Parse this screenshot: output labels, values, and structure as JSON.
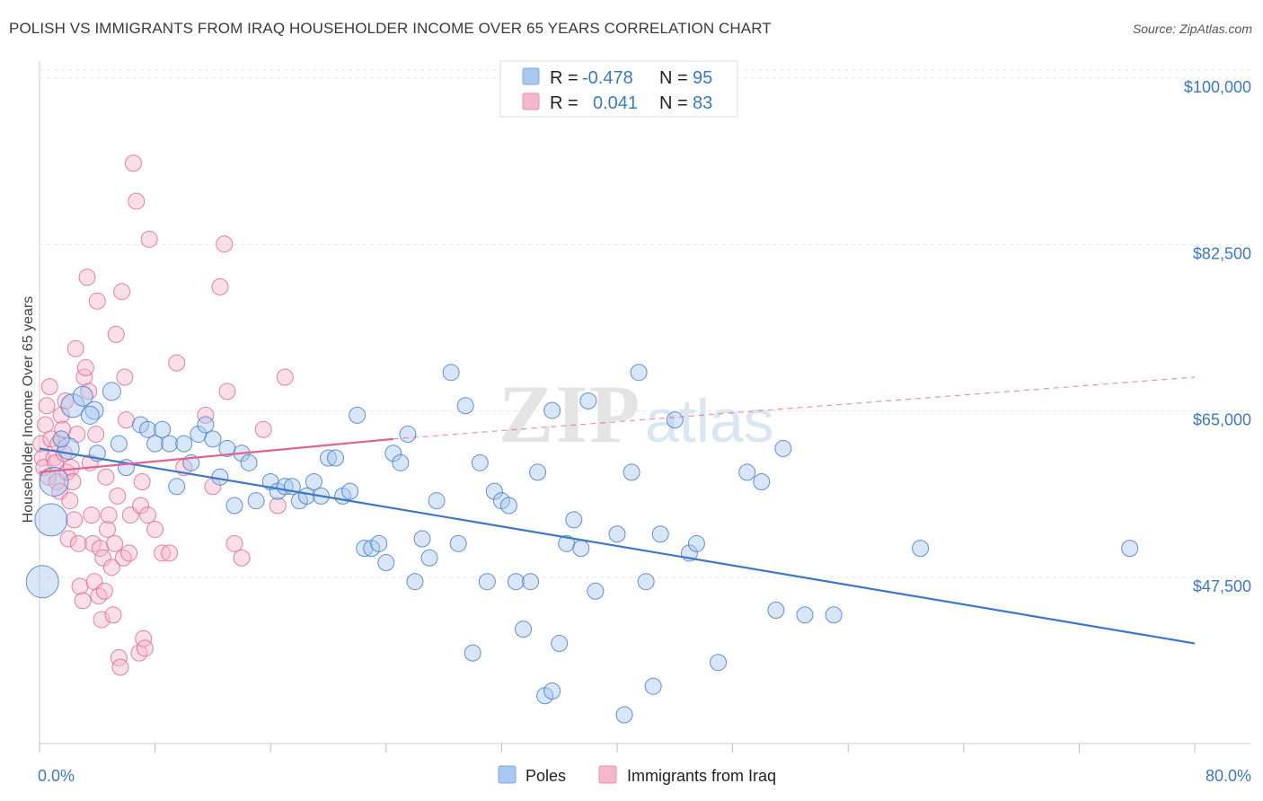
{
  "header": {
    "title": "POLISH VS IMMIGRANTS FROM IRAQ HOUSEHOLDER INCOME OVER 65 YEARS CORRELATION CHART",
    "source": "Source: ZipAtlas.com"
  },
  "watermark": {
    "zip": "ZIP",
    "atlas": "atlas"
  },
  "legend": {
    "rows": [
      {
        "r_label": "R =",
        "r_value": "-0.478",
        "n_label": "N =",
        "n_value": "95",
        "color": "#a8c8f0"
      },
      {
        "r_label": "R =",
        "r_value": "0.041",
        "n_label": "N =",
        "n_value": "83",
        "color": "#f5b8cb"
      }
    ]
  },
  "bottom_legend": [
    {
      "label": "Poles",
      "color": "#a8c8f0"
    },
    {
      "label": "Immigrants from Iraq",
      "color": "#f5b8cb"
    }
  ],
  "chart_data": {
    "type": "scatter",
    "title": "POLISH VS IMMIGRANTS FROM IRAQ HOUSEHOLDER INCOME OVER 65 YEARS CORRELATION CHART",
    "xlabel": "",
    "ylabel": "Householder Income Over 65 years",
    "x_tick_labels": [
      "0.0%",
      "80.0%"
    ],
    "y_tick_labels": [
      "$100,000",
      "$82,500",
      "$65,000",
      "$47,500"
    ],
    "y_ticks": [
      100000,
      82500,
      65000,
      47500
    ],
    "xlim": [
      0,
      80
    ],
    "ylim": [
      30000,
      102000
    ],
    "grid": "horizontal dashed",
    "legend_position": "top-center",
    "colors": {
      "poles": "#3b78c8",
      "poles_fill": "#a8c8f0",
      "iraq": "#e0628f",
      "iraq_fill": "#f5b8cb"
    },
    "series": [
      {
        "name": "Poles",
        "trend": {
          "x": [
            0,
            80
          ],
          "y": [
            62000,
            41500
          ],
          "style": "solid"
        },
        "points": [
          [
            0.2,
            48000,
            18
          ],
          [
            0.8,
            54500,
            18
          ],
          [
            1.0,
            58500,
            16
          ],
          [
            2.3,
            66500,
            13
          ],
          [
            2.0,
            62000,
            12
          ],
          [
            3.0,
            67500,
            11
          ],
          [
            3.8,
            66000,
            10
          ],
          [
            5.0,
            68000,
            10
          ],
          [
            3.5,
            65500,
            10
          ],
          [
            5.5,
            62500,
            9
          ],
          [
            7.0,
            64500,
            9
          ],
          [
            7.5,
            64000,
            9
          ],
          [
            8.0,
            62500,
            9
          ],
          [
            9.0,
            62500,
            9
          ],
          [
            8.5,
            64000,
            9
          ],
          [
            10.0,
            62500,
            9
          ],
          [
            10.5,
            60500,
            9
          ],
          [
            11.0,
            63500,
            9
          ],
          [
            11.5,
            64500,
            9
          ],
          [
            12.0,
            63000,
            9
          ],
          [
            12.5,
            59000,
            9
          ],
          [
            13.0,
            62000,
            9
          ],
          [
            14.0,
            61500,
            9
          ],
          [
            14.5,
            60500,
            9
          ],
          [
            15.0,
            56500,
            9
          ],
          [
            16.0,
            58500,
            9
          ],
          [
            16.5,
            57500,
            9
          ],
          [
            17.0,
            58000,
            9
          ],
          [
            17.5,
            58000,
            9
          ],
          [
            18.0,
            56500,
            9
          ],
          [
            18.5,
            57000,
            9
          ],
          [
            19.0,
            58500,
            9
          ],
          [
            19.5,
            57000,
            9
          ],
          [
            20.0,
            61000,
            9
          ],
          [
            20.5,
            61000,
            9
          ],
          [
            21.0,
            57000,
            9
          ],
          [
            21.5,
            57500,
            9
          ],
          [
            22.0,
            65500,
            9
          ],
          [
            22.5,
            51500,
            9
          ],
          [
            23.0,
            51500,
            9
          ],
          [
            23.5,
            52000,
            9
          ],
          [
            24.0,
            50000,
            9
          ],
          [
            24.5,
            61500,
            9
          ],
          [
            25.0,
            60500,
            9
          ],
          [
            25.5,
            63500,
            9
          ],
          [
            26.0,
            48000,
            9
          ],
          [
            26.5,
            52500,
            9
          ],
          [
            27.0,
            50500,
            9
          ],
          [
            27.5,
            56500,
            9
          ],
          [
            28.5,
            70000,
            9
          ],
          [
            29.0,
            52000,
            9
          ],
          [
            29.5,
            66500,
            9
          ],
          [
            30.0,
            40500,
            9
          ],
          [
            30.5,
            60500,
            9
          ],
          [
            31.0,
            48000,
            9
          ],
          [
            31.5,
            57500,
            9
          ],
          [
            32.0,
            56500,
            9
          ],
          [
            32.5,
            56000,
            9
          ],
          [
            33.0,
            48000,
            9
          ],
          [
            33.5,
            43000,
            9
          ],
          [
            34.0,
            48000,
            9
          ],
          [
            34.5,
            59500,
            9
          ],
          [
            35.0,
            36000,
            9
          ],
          [
            35.5,
            66000,
            9
          ],
          [
            35.5,
            36500,
            9
          ],
          [
            36.5,
            52000,
            9
          ],
          [
            37.0,
            54500,
            9
          ],
          [
            37.5,
            51500,
            9
          ],
          [
            38.0,
            67000,
            9
          ],
          [
            38.5,
            47000,
            9
          ],
          [
            40.0,
            53000,
            9
          ],
          [
            40.5,
            34000,
            9
          ],
          [
            41.0,
            59500,
            9
          ],
          [
            41.5,
            70000,
            9
          ],
          [
            42.0,
            48000,
            9
          ],
          [
            42.5,
            37000,
            9
          ],
          [
            43.0,
            53000,
            9
          ],
          [
            44.0,
            65000,
            9
          ],
          [
            45.0,
            51000,
            9
          ],
          [
            45.5,
            52000,
            9
          ],
          [
            47.0,
            39500,
            9
          ],
          [
            49.0,
            59500,
            9
          ],
          [
            50.0,
            58500,
            9
          ],
          [
            51.0,
            45000,
            9
          ],
          [
            51.5,
            62000,
            9
          ],
          [
            53.0,
            44500,
            9
          ],
          [
            55.0,
            44500,
            9
          ],
          [
            61.0,
            51500,
            9
          ],
          [
            75.5,
            51500,
            9
          ],
          [
            36.0,
            41500,
            9
          ],
          [
            1.5,
            63000,
            9
          ],
          [
            4.0,
            61500,
            9
          ],
          [
            6.0,
            60000,
            9
          ],
          [
            9.5,
            58000,
            9
          ],
          [
            13.5,
            56000,
            9
          ]
        ]
      },
      {
        "name": "Immigrants from Iraq",
        "trend": {
          "x": [
            0,
            24.5
          ],
          "y": [
            59500,
            63000
          ],
          "style": "solid",
          "extended_dashed_to": [
            80,
            69500
          ]
        },
        "points": [
          [
            0.1,
            62500,
            9
          ],
          [
            0.2,
            61000,
            9
          ],
          [
            0.3,
            60000,
            9
          ],
          [
            0.4,
            64500,
            9
          ],
          [
            0.5,
            66500,
            9
          ],
          [
            0.6,
            59000,
            9
          ],
          [
            0.7,
            68500,
            9
          ],
          [
            0.8,
            63000,
            9
          ],
          [
            1.0,
            61000,
            9
          ],
          [
            1.1,
            60500,
            9
          ],
          [
            1.2,
            58500,
            9
          ],
          [
            1.3,
            62500,
            9
          ],
          [
            1.4,
            57500,
            9
          ],
          [
            1.5,
            65500,
            9
          ],
          [
            1.6,
            64000,
            9
          ],
          [
            1.7,
            61500,
            9
          ],
          [
            1.8,
            67000,
            9
          ],
          [
            1.9,
            59500,
            9
          ],
          [
            2.0,
            52500,
            9
          ],
          [
            2.1,
            56500,
            9
          ],
          [
            2.2,
            60000,
            9
          ],
          [
            2.3,
            58500,
            9
          ],
          [
            2.4,
            54500,
            9
          ],
          [
            2.5,
            72500,
            9
          ],
          [
            2.6,
            63500,
            9
          ],
          [
            2.7,
            52000,
            9
          ],
          [
            2.8,
            47500,
            9
          ],
          [
            3.0,
            46000,
            9
          ],
          [
            3.1,
            69500,
            9
          ],
          [
            3.2,
            70500,
            9
          ],
          [
            3.3,
            80000,
            9
          ],
          [
            3.4,
            68000,
            9
          ],
          [
            3.5,
            60500,
            9
          ],
          [
            3.6,
            55000,
            9
          ],
          [
            3.7,
            52000,
            9
          ],
          [
            3.8,
            48000,
            9
          ],
          [
            3.9,
            63500,
            9
          ],
          [
            4.0,
            77500,
            9
          ],
          [
            4.1,
            46500,
            9
          ],
          [
            4.2,
            51500,
            9
          ],
          [
            4.3,
            44000,
            9
          ],
          [
            4.4,
            50500,
            9
          ],
          [
            4.5,
            47000,
            9
          ],
          [
            4.6,
            59000,
            9
          ],
          [
            4.7,
            53500,
            9
          ],
          [
            4.8,
            55000,
            9
          ],
          [
            5.0,
            49500,
            9
          ],
          [
            5.1,
            44500,
            9
          ],
          [
            5.2,
            52000,
            9
          ],
          [
            5.3,
            74000,
            9
          ],
          [
            5.4,
            57000,
            9
          ],
          [
            5.5,
            40000,
            9
          ],
          [
            5.6,
            39000,
            9
          ],
          [
            5.7,
            78500,
            9
          ],
          [
            5.8,
            50500,
            9
          ],
          [
            5.9,
            69500,
            9
          ],
          [
            6.0,
            65000,
            9
          ],
          [
            6.2,
            51000,
            9
          ],
          [
            6.3,
            55000,
            9
          ],
          [
            6.5,
            92000,
            9
          ],
          [
            6.7,
            88000,
            9
          ],
          [
            6.9,
            40500,
            9
          ],
          [
            7.0,
            56000,
            9
          ],
          [
            7.1,
            58500,
            9
          ],
          [
            7.2,
            42000,
            9
          ],
          [
            7.3,
            41000,
            9
          ],
          [
            7.5,
            55000,
            9
          ],
          [
            7.6,
            84000,
            9
          ],
          [
            8.0,
            53500,
            9
          ],
          [
            8.5,
            51000,
            9
          ],
          [
            9.0,
            51000,
            9
          ],
          [
            9.5,
            71000,
            9
          ],
          [
            10.0,
            60000,
            9
          ],
          [
            11.5,
            65500,
            9
          ],
          [
            12.0,
            58000,
            9
          ],
          [
            12.5,
            79000,
            9
          ],
          [
            12.8,
            83500,
            9
          ],
          [
            13.0,
            68000,
            9
          ],
          [
            13.5,
            52000,
            9
          ],
          [
            14.0,
            50500,
            9
          ],
          [
            15.5,
            64000,
            9
          ],
          [
            16.5,
            56000,
            9
          ],
          [
            17.0,
            69500,
            9
          ]
        ]
      }
    ]
  }
}
